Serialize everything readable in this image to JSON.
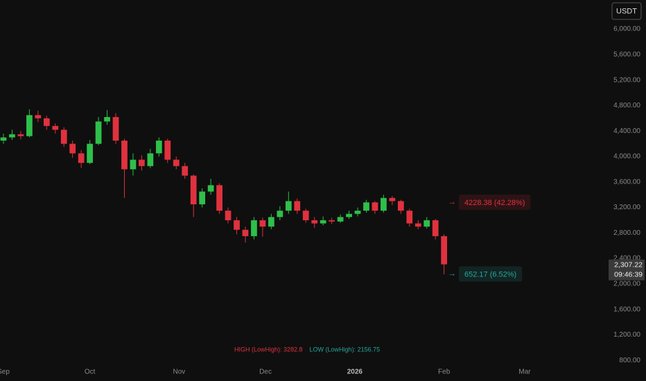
{
  "chart_data": {
    "type": "candlestick",
    "x": [
      0,
      3,
      6,
      9,
      12,
      15,
      18,
      21,
      24,
      27,
      30,
      33,
      36,
      39,
      42,
      45,
      48,
      51,
      54,
      57,
      60,
      63,
      66,
      69,
      72,
      75,
      78,
      81,
      84,
      87,
      90,
      93,
      96,
      99,
      102,
      105,
      108,
      111,
      114,
      117,
      120,
      123,
      126,
      129,
      132,
      135,
      138,
      141,
      144,
      147,
      150,
      153
    ],
    "open": [
      4250,
      4300,
      4350,
      4320,
      4650,
      4600,
      4480,
      4420,
      4200,
      4050,
      3900,
      4200,
      4550,
      4620,
      4250,
      3800,
      3950,
      3850,
      4050,
      4250,
      3950,
      3850,
      3700,
      3250,
      3450,
      3550,
      3150,
      3000,
      2850,
      2750,
      3000,
      2900,
      3050,
      3150,
      3300,
      3150,
      3000,
      2950,
      3000,
      2980,
      3050,
      3100,
      3150,
      3280,
      3150,
      3350,
      3300,
      3150,
      2950,
      2900,
      3000,
      2750
    ],
    "high": [
      4360,
      4420,
      4400,
      4740,
      4720,
      4640,
      4520,
      4460,
      4250,
      4100,
      4260,
      4620,
      4730,
      4680,
      4280,
      4050,
      4020,
      4120,
      4300,
      4280,
      4000,
      3900,
      3720,
      3500,
      3650,
      3580,
      3200,
      3050,
      2900,
      3050,
      3040,
      3100,
      3220,
      3450,
      3340,
      3180,
      3050,
      3060,
      3040,
      3090,
      3150,
      3200,
      3320,
      3300,
      3400,
      3380,
      3320,
      3180,
      3000,
      3050,
      3020,
      2780
    ],
    "low": [
      4200,
      4260,
      4270,
      4300,
      4540,
      4420,
      4360,
      4150,
      3980,
      3820,
      3880,
      4180,
      4500,
      4200,
      3350,
      3700,
      3780,
      3820,
      4000,
      3900,
      3800,
      3650,
      3050,
      3200,
      3400,
      3100,
      2950,
      2780,
      2650,
      2700,
      2740,
      2860,
      3000,
      3100,
      3100,
      2960,
      2880,
      2920,
      2940,
      2960,
      3020,
      3060,
      3120,
      3100,
      3120,
      3240,
      3100,
      2900,
      2860,
      2870,
      2700,
      2150
    ],
    "close": [
      4300,
      4350,
      4320,
      4650,
      4600,
      4480,
      4420,
      4200,
      4050,
      3900,
      4200,
      4550,
      4620,
      4250,
      3800,
      3950,
      3850,
      4050,
      4250,
      3950,
      3850,
      3700,
      3250,
      3450,
      3550,
      3150,
      3000,
      2850,
      2750,
      3000,
      2900,
      3050,
      3150,
      3300,
      3150,
      3000,
      2950,
      3000,
      2980,
      3050,
      3100,
      3150,
      3280,
      3150,
      3350,
      3300,
      3150,
      2950,
      2900,
      3000,
      2750,
      2307.22
    ],
    "up_color": "#2fbf4a",
    "down_color": "#e0323e",
    "xlim": [
      -1.2,
      208.2
    ],
    "xticks": [
      {
        "value": 0,
        "label": "Sep"
      },
      {
        "value": 30,
        "label": "Oct"
      },
      {
        "value": 61,
        "label": "Nov"
      },
      {
        "value": 91,
        "label": "Dec"
      },
      {
        "value": 122,
        "label": "2026"
      },
      {
        "value": 153,
        "label": "Feb"
      },
      {
        "value": 181,
        "label": "Mar"
      }
    ],
    "ylim": [
      585,
      6240
    ],
    "yticks": [
      {
        "value": 800,
        "label": "800.00"
      },
      {
        "value": 1200,
        "label": "1,200.00"
      },
      {
        "value": 1600,
        "label": "1,600.00"
      },
      {
        "value": 2000,
        "label": "2,000.00"
      },
      {
        "value": 2400,
        "label": "2,400.00"
      },
      {
        "value": 2800,
        "label": "2,800.00"
      },
      {
        "value": 3200,
        "label": "3,200.00"
      },
      {
        "value": 3600,
        "label": "3,600.00"
      },
      {
        "value": 4000,
        "label": "4,000.00"
      },
      {
        "value": 4400,
        "label": "4,400.00"
      },
      {
        "value": 4800,
        "label": "4,800.00"
      },
      {
        "value": 5200,
        "label": "5,200.00"
      },
      {
        "value": 5600,
        "label": "5,600.00"
      },
      {
        "value": 6000,
        "label": "6,000.00"
      }
    ],
    "last_price": {
      "value": 2307.22,
      "label": "2,307.22"
    },
    "countdown": "09:46:39",
    "currency": "USDT",
    "targets": [
      {
        "value": 3282.8,
        "text": "4228.38 (42.28%)",
        "color": "#e0323e"
      },
      {
        "value": 2156.75,
        "text": "652.17 (6.52%)",
        "color": "#26a69a"
      }
    ],
    "footer": [
      {
        "text": "HIGH (LowHigh): 3282.8",
        "color": "#e0323e"
      },
      {
        "text": "LOW (LowHigh): 2156.75",
        "color": "#26a69a"
      }
    ]
  }
}
